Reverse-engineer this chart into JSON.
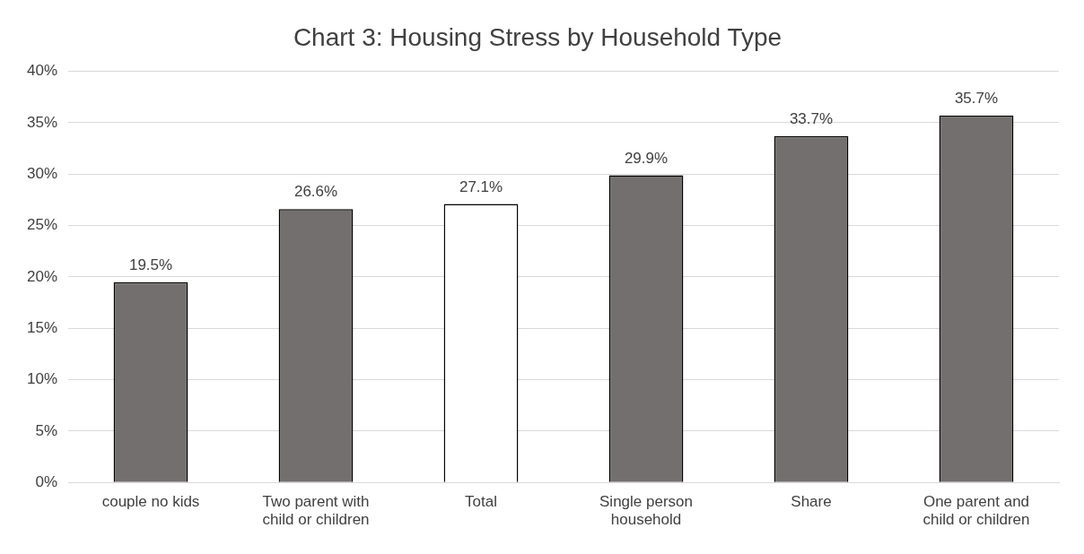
{
  "chart_data": {
    "type": "bar",
    "title": "Chart 3: Housing Stress by Household Type",
    "categories": [
      "couple no kids",
      "Two parent with child or children",
      "Total",
      "Single person household",
      "Share",
      "One parent and child or children"
    ],
    "values": [
      19.5,
      26.6,
      27.1,
      29.9,
      33.7,
      35.7
    ],
    "colors": [
      "#736f6e",
      "#736f6e",
      "#ffffff",
      "#736f6e",
      "#736f6e",
      "#736f6e"
    ],
    "value_labels": [
      "19.5%",
      "26.6%",
      "27.1%",
      "29.9%",
      "33.7%",
      "35.7%"
    ],
    "ylim": [
      0,
      40
    ],
    "yticks": [
      {
        "value": 0,
        "label": "0%"
      },
      {
        "value": 5,
        "label": "5%"
      },
      {
        "value": 10,
        "label": "10%"
      },
      {
        "value": 15,
        "label": "15%"
      },
      {
        "value": 20,
        "label": "20%"
      },
      {
        "value": 25,
        "label": "25%"
      },
      {
        "value": 30,
        "label": "30%"
      },
      {
        "value": 35,
        "label": "35%"
      },
      {
        "value": 40,
        "label": "40%"
      }
    ],
    "grid": "y",
    "legend": false
  }
}
